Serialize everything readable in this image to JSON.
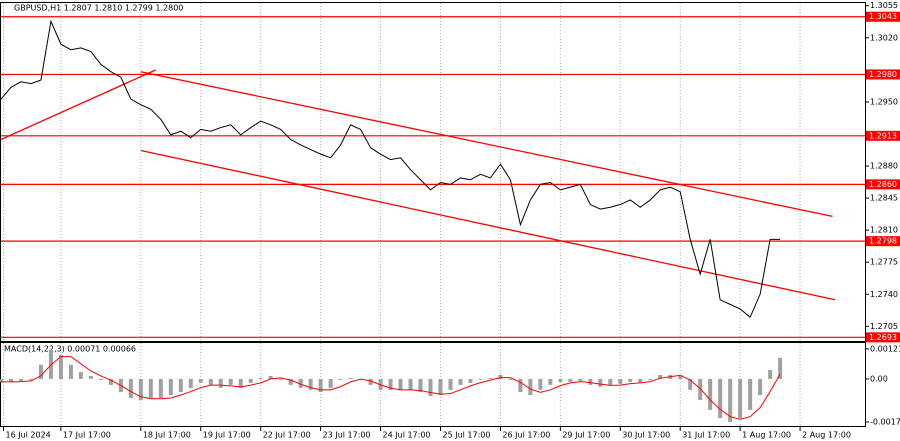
{
  "chart_data": [
    {
      "type": "line",
      "title": "GBPUSD,H1  1.2807 1.2810 1.2799 1.2800",
      "x": [
        0,
        4,
        8,
        12,
        16,
        20,
        24,
        28,
        32,
        36,
        40,
        44,
        48,
        52,
        56,
        60,
        64,
        68,
        72,
        76,
        80,
        84,
        88,
        92,
        96,
        100,
        104,
        108,
        112,
        116,
        120,
        124,
        128,
        132,
        136,
        140,
        144,
        148,
        152,
        156,
        160,
        164,
        168,
        172,
        176,
        180,
        184,
        188,
        192,
        196,
        200,
        204,
        208,
        212,
        216,
        220,
        224,
        228,
        232,
        236,
        240,
        244,
        248,
        252,
        256,
        260,
        264,
        268,
        272,
        276,
        280,
        284,
        288,
        292,
        296,
        300,
        304,
        308,
        312
      ],
      "values": [
        1.2953,
        1.2966,
        1.2972,
        1.297,
        1.2974,
        1.3038,
        1.3013,
        1.3007,
        1.3009,
        1.3005,
        1.2991,
        1.2983,
        1.2977,
        1.2953,
        1.2947,
        1.2942,
        1.2931,
        1.2914,
        1.2918,
        1.2911,
        1.292,
        1.2918,
        1.2922,
        1.2925,
        1.2914,
        1.2922,
        1.2929,
        1.2925,
        1.292,
        1.2909,
        1.2903,
        1.2898,
        1.2893,
        1.2889,
        1.2903,
        1.2925,
        1.292,
        1.29,
        1.2893,
        1.2887,
        1.2889,
        1.2876,
        1.2865,
        1.2854,
        1.2862,
        1.286,
        1.2867,
        1.2865,
        1.2871,
        1.2867,
        1.2882,
        1.2865,
        1.2816,
        1.2843,
        1.286,
        1.2862,
        1.2854,
        1.2857,
        1.286,
        1.2838,
        1.2833,
        1.2835,
        1.2838,
        1.2843,
        1.2835,
        1.2843,
        1.2854,
        1.2857,
        1.2852,
        1.28,
        1.2762,
        1.28,
        1.2734,
        1.2729,
        1.2724,
        1.2715,
        1.274,
        1.28,
        1.28
      ],
      "color": "#000000",
      "xlim": [
        0,
        346
      ],
      "xticks": [
        {
          "value": 1,
          "label": "16 Jul 2024"
        },
        {
          "value": 24,
          "label": "17 Jul 17:00"
        },
        {
          "value": 56,
          "label": "18 Jul 17:00"
        },
        {
          "value": 80,
          "label": "19 Jul 17:00"
        },
        {
          "value": 104,
          "label": "22 Jul 17:00"
        },
        {
          "value": 128,
          "label": "23 Jul 17:00"
        },
        {
          "value": 152,
          "label": "24 Jul 17:00"
        },
        {
          "value": 176,
          "label": "25 Jul 17:00"
        },
        {
          "value": 200,
          "label": "26 Jul 17:00"
        },
        {
          "value": 224,
          "label": "29 Jul 17:00"
        },
        {
          "value": 248,
          "label": "30 Jul 17:00"
        },
        {
          "value": 272,
          "label": "31 Jul 17:00"
        },
        {
          "value": 296,
          "label": "1 Aug 17:00"
        },
        {
          "value": 320,
          "label": "2 Aug 17:00"
        }
      ],
      "ylim": [
        1.2689,
        1.3058
      ],
      "yticks": [
        {
          "value": 1.3055,
          "label": "1.3055"
        },
        {
          "value": 1.302,
          "label": "1.3020"
        },
        {
          "value": 1.295,
          "label": "1.2950"
        },
        {
          "value": 1.288,
          "label": "1.2880"
        },
        {
          "value": 1.2845,
          "label": "1.2845"
        },
        {
          "value": 1.281,
          "label": "1.2810"
        },
        {
          "value": 1.2775,
          "label": "1.2775"
        },
        {
          "value": 1.274,
          "label": "1.2740"
        },
        {
          "value": 1.2705,
          "label": "1.2705"
        }
      ],
      "grid": true,
      "levels": [
        {
          "value": 1.3043,
          "label": "1.3043"
        },
        {
          "value": 1.298,
          "label": "1.2980"
        },
        {
          "value": 1.2913,
          "label": "1.2913"
        },
        {
          "value": 1.286,
          "label": "1.2860"
        },
        {
          "value": 1.2798,
          "label": "1.2798"
        },
        {
          "value": 1.2693,
          "label": "1.2693"
        }
      ],
      "level_color": "#ff0000",
      "trendlines": [
        {
          "x": [
            56,
            333
          ],
          "y": [
            1.2983,
            1.2825
          ]
        },
        {
          "x": [
            56,
            334
          ],
          "y": [
            1.2897,
            1.2734
          ]
        },
        {
          "x": [
            0,
            62
          ],
          "y": [
            1.2909,
            1.2985
          ]
        }
      ]
    },
    {
      "type": "bar",
      "title": "MACD(14,22,3) 0.00071 0.00066",
      "x": [
        0,
        4,
        8,
        12,
        16,
        20,
        24,
        28,
        32,
        36,
        40,
        44,
        48,
        52,
        56,
        60,
        64,
        68,
        72,
        76,
        80,
        84,
        88,
        92,
        96,
        100,
        104,
        108,
        112,
        116,
        120,
        124,
        128,
        132,
        136,
        140,
        144,
        148,
        152,
        156,
        160,
        164,
        168,
        172,
        176,
        180,
        184,
        188,
        192,
        196,
        200,
        204,
        208,
        212,
        216,
        220,
        224,
        228,
        232,
        236,
        240,
        244,
        248,
        252,
        256,
        260,
        264,
        268,
        272,
        276,
        280,
        284,
        288,
        292,
        296,
        300,
        304,
        308,
        312
      ],
      "values": [
        -0.00012,
        -0.00012,
        -8e-05,
        -4e-05,
        0.00057,
        0.00117,
        0.00097,
        0.00057,
        0.00028,
        0.00012,
        -4e-05,
        -0.00024,
        -0.00053,
        -0.00077,
        -0.00085,
        -0.00077,
        -0.00077,
        -0.00065,
        -0.00053,
        -0.00036,
        -0.00016,
        -0.00024,
        -0.00036,
        -0.00024,
        -0.00036,
        -0.00016,
        4e-05,
        0.00012,
        -4e-05,
        -0.00024,
        -0.00036,
        -0.00044,
        -0.00053,
        -0.00036,
        -4e-05,
        4e-05,
        -4e-05,
        -0.00024,
        -0.00044,
        -0.00044,
        -0.00044,
        -0.00044,
        -0.00053,
        -0.00069,
        -0.00065,
        -0.00044,
        -0.00024,
        -0.00016,
        -4e-05,
        4e-05,
        0.00016,
        -4e-05,
        -0.00053,
        -0.00065,
        -0.00044,
        -0.00024,
        -0.00012,
        -0.00012,
        -8e-05,
        -0.00024,
        -0.00032,
        -0.00024,
        -0.0002,
        -0.00012,
        -0.00016,
        -4e-05,
        0.00016,
        0.00016,
        0.00012,
        -0.00044,
        -0.00085,
        -0.00125,
        -0.00158,
        -0.00174,
        -0.00158,
        -0.00125,
        -0.00065,
        0.00036,
        0.00085
      ],
      "color": "#a0a0a0",
      "signal": {
        "color": "#ff0000",
        "values": [
          -0.00012,
          -0.00012,
          -0.00011,
          -8e-05,
          0.00013,
          0.00057,
          0.0009,
          0.0009,
          0.00061,
          0.00032,
          0.00012,
          -5e-05,
          -0.00027,
          -0.00051,
          -0.00072,
          -0.0008,
          -0.0008,
          -0.00077,
          -0.00065,
          -0.00051,
          -0.00035,
          -0.00025,
          -0.00025,
          -0.00028,
          -0.00032,
          -0.00025,
          -0.00016,
          0,
          4e-05,
          -5e-05,
          -0.00021,
          -0.00035,
          -0.00044,
          -0.00044,
          -0.00031,
          -0.00012,
          -1e-05,
          -8e-05,
          -0.00024,
          -0.00037,
          -0.00044,
          -0.00044,
          -0.00047,
          -0.00055,
          -0.00062,
          -0.00059,
          -0.00044,
          -0.00028,
          -0.00015,
          -5e-05,
          5e-05,
          5e-05,
          -0.00014,
          -0.00041,
          -0.00054,
          -0.00044,
          -0.00027,
          -0.00016,
          -0.00011,
          -0.00015,
          -0.00021,
          -0.00026,
          -0.00025,
          -0.00019,
          -0.00016,
          -0.00011,
          3e-05,
          9e-05,
          0.00015,
          -5e-05,
          -0.00039,
          -0.00085,
          -0.00123,
          -0.00152,
          -0.00163,
          -0.00152,
          -0.00116,
          -0.00051,
          0.00019
        ]
      },
      "xlim": [
        0,
        346
      ],
      "ylim": [
        -0.0019,
        0.00145
      ],
      "yticks": [
        0.00121,
        {
          "value": 0,
          "label": "0.00"
        },
        -0.00174
      ]
    }
  ]
}
